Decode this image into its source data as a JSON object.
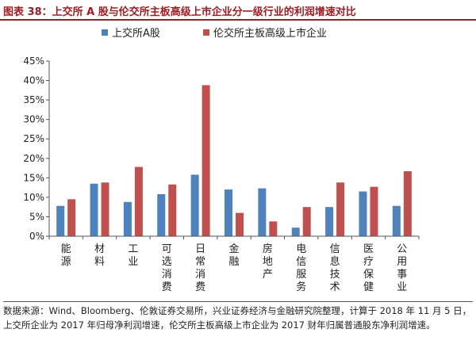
{
  "header": {
    "title": "图表 38：上交所 A 股与伦交所主板高级上市企业分一级行业的利润增速对比"
  },
  "chart_data": {
    "type": "bar",
    "categories": [
      "能源",
      "材料",
      "工业",
      "可选消费",
      "日常消费",
      "金融",
      "房地产",
      "电信服务",
      "信息技术",
      "医疗保健",
      "公用事业"
    ],
    "series": [
      {
        "name": "上交所A股",
        "color": "#4f81bd",
        "values": [
          7.8,
          13.5,
          8.8,
          10.8,
          15.8,
          12.0,
          12.3,
          2.2,
          7.5,
          11.5,
          7.8
        ]
      },
      {
        "name": "伦交所主板高级上市企业",
        "color": "#c0504d",
        "values": [
          9.5,
          13.8,
          17.8,
          13.3,
          38.8,
          6.0,
          3.8,
          7.5,
          13.8,
          12.7,
          16.7
        ]
      }
    ],
    "yticks": [
      "0%",
      "5%",
      "10%",
      "15%",
      "20%",
      "25%",
      "30%",
      "35%",
      "40%",
      "45%"
    ],
    "ylim": [
      0,
      45
    ],
    "legend_position": "top-center",
    "grid": false
  },
  "footer": {
    "source": "数据来源：Wind、Bloomberg、伦敦证券交易所，兴业证券经济与金融研究院整理，计算于 2018 年 11 月 5 日，上交所企业为 2017 年归母净利润增速，伦交所主板高级上市企业为 2017 财年归属普通股东净利润增速。"
  }
}
